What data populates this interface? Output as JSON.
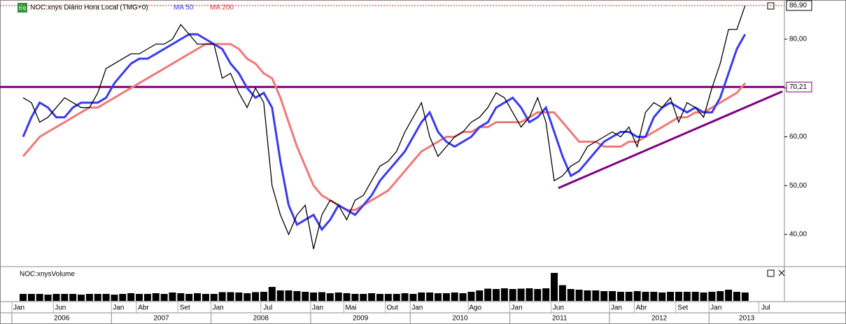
{
  "chart_data": [
    {
      "type": "line",
      "title": "NOC:xnys Diário Hora Local (TMG+0)",
      "icon": "Eq",
      "x": [
        "2006-01",
        "2006-02",
        "2006-03",
        "2006-04",
        "2006-05",
        "2006-06",
        "2006-07",
        "2006-08",
        "2006-09",
        "2006-10",
        "2006-11",
        "2006-12",
        "2007-01",
        "2007-02",
        "2007-03",
        "2007-04",
        "2007-05",
        "2007-06",
        "2007-07",
        "2007-08",
        "2007-09",
        "2007-10",
        "2007-11",
        "2007-12",
        "2008-01",
        "2008-02",
        "2008-03",
        "2008-04",
        "2008-05",
        "2008-06",
        "2008-07",
        "2008-08",
        "2008-09",
        "2008-10",
        "2008-11",
        "2008-12",
        "2009-01",
        "2009-02",
        "2009-03",
        "2009-04",
        "2009-05",
        "2009-06",
        "2009-07",
        "2009-08",
        "2009-09",
        "2009-10",
        "2009-11",
        "2009-12",
        "2010-01",
        "2010-02",
        "2010-03",
        "2010-04",
        "2010-05",
        "2010-06",
        "2010-07",
        "2010-08",
        "2010-09",
        "2010-10",
        "2010-11",
        "2010-12",
        "2011-01",
        "2011-02",
        "2011-03",
        "2011-04",
        "2011-05",
        "2011-06",
        "2011-07",
        "2011-08",
        "2011-09",
        "2011-10",
        "2011-11",
        "2011-12",
        "2012-01",
        "2012-02",
        "2012-03",
        "2012-04",
        "2012-05",
        "2012-06",
        "2012-07",
        "2012-08",
        "2012-09",
        "2012-10",
        "2012-11",
        "2012-12",
        "2013-01",
        "2013-02",
        "2013-03",
        "2013-04"
      ],
      "series": [
        {
          "name": "NOC:xnys",
          "color": "#000000",
          "values": [
            68,
            67,
            63,
            64,
            66,
            68,
            67,
            66,
            66,
            69,
            74,
            75,
            76,
            77,
            77,
            78,
            79,
            79,
            80,
            83,
            81,
            79,
            79,
            79,
            72,
            73,
            69,
            66,
            70,
            67,
            50,
            44,
            40,
            44,
            46,
            37,
            44,
            47,
            46,
            43,
            47,
            48,
            51,
            54,
            55,
            57,
            61,
            64,
            67,
            60,
            56,
            58,
            60,
            61,
            63,
            64,
            66,
            69,
            68,
            65,
            62,
            64,
            68,
            63,
            51,
            52,
            54,
            55,
            58,
            59,
            60,
            61,
            60,
            62,
            58,
            65,
            67,
            66,
            68,
            63,
            67,
            66,
            64,
            70,
            75,
            82,
            82,
            86.9
          ]
        },
        {
          "name": "MA 50",
          "color": "#3a3af0",
          "values": [
            60,
            64,
            67,
            66,
            64,
            64,
            66,
            67,
            67,
            67,
            68,
            71,
            73,
            75,
            76,
            76,
            77,
            78,
            79,
            80,
            81,
            81,
            80,
            79,
            78,
            75,
            73,
            70,
            68,
            69,
            66,
            55,
            46,
            42,
            43,
            44,
            41,
            43,
            46,
            45,
            44,
            46,
            48,
            51,
            53,
            55,
            57,
            60,
            63,
            65,
            61,
            59,
            58,
            59,
            60,
            62,
            63,
            66,
            67,
            68,
            66,
            63,
            64,
            66,
            61,
            56,
            52,
            53,
            55,
            57,
            59,
            60,
            61,
            61,
            60,
            60,
            64,
            66,
            67,
            66,
            65,
            66,
            65,
            65,
            68,
            73,
            78,
            81
          ]
        },
        {
          "name": "MA 200",
          "color": "#f07878",
          "values": [
            56,
            58,
            60,
            61,
            62,
            63,
            64,
            65,
            66,
            66,
            67,
            68,
            69,
            70,
            71,
            72,
            73,
            74,
            75,
            76,
            77,
            78,
            79,
            79,
            79,
            79,
            78,
            76,
            75,
            73,
            72,
            68,
            63,
            58,
            54,
            50,
            48,
            47,
            46,
            45,
            45,
            46,
            47,
            48,
            49,
            51,
            53,
            55,
            57,
            58,
            59,
            60,
            60,
            61,
            61,
            62,
            62,
            63,
            63,
            63,
            63,
            64,
            65,
            65,
            65,
            63,
            61,
            59,
            59,
            59,
            58,
            58,
            58,
            59,
            59,
            60,
            61,
            62,
            63,
            64,
            64,
            65,
            65,
            66,
            67,
            68,
            69,
            71
          ]
        }
      ],
      "last_label": "86,90",
      "hline": {
        "value": 70.21,
        "label": "70,21",
        "color": "#800080"
      },
      "trendline": {
        "x": [
          "2011-06",
          "2013-09"
        ],
        "y": [
          49.5,
          69.3
        ],
        "color": "#800080"
      },
      "ylim": [
        33.55,
        88.03
      ],
      "yticks": [
        {
          "value": 40,
          "label": "40,00"
        },
        {
          "value": 50,
          "label": "50,00"
        },
        {
          "value": 60,
          "label": "60,00"
        },
        {
          "value": 70,
          "label": "70,00"
        },
        {
          "value": 80,
          "label": "80,00"
        }
      ]
    },
    {
      "type": "bar",
      "title": "NOC:xnysVolume",
      "color": "#000000",
      "values": [
        2,
        2,
        2,
        1.8,
        2,
        2,
        2,
        1.8,
        2,
        2,
        2,
        1.8,
        2,
        2.2,
        2,
        2,
        2.2,
        2,
        2.4,
        2.2,
        2,
        2.2,
        2,
        2,
        2.5,
        2.5,
        2.4,
        2.2,
        2.5,
        2.6,
        4,
        3,
        3,
        2.8,
        2.6,
        2.4,
        2.5,
        2.2,
        2.4,
        2.2,
        2,
        2,
        2.2,
        2,
        2,
        2,
        2.2,
        2,
        2.4,
        2.4,
        2.2,
        2.2,
        2.4,
        2.2,
        2.6,
        3,
        3.5,
        3.4,
        3.6,
        3.4,
        3.5,
        3.6,
        3.4,
        3.6,
        8,
        4.5,
        3.4,
        3.2,
        3,
        3,
        2.8,
        2.8,
        2.6,
        2.6,
        2.8,
        2.6,
        2.6,
        2.4,
        2.6,
        2.6,
        2.6,
        2.6,
        2.4,
        2.6,
        2.8,
        3.2,
        2.6,
        2.4
      ],
      "xticks": [
        {
          "value": "2006-01",
          "label": "Jan"
        },
        {
          "value": "2006-06",
          "label": "Jun"
        },
        {
          "value": "2007-01",
          "label": "Jan"
        },
        {
          "value": "2007-04",
          "label": "Abr"
        },
        {
          "value": "2007-09",
          "label": "Set"
        },
        {
          "value": "2008-01",
          "label": "Jan"
        },
        {
          "value": "2008-07",
          "label": "Jul"
        },
        {
          "value": "2009-01",
          "label": "Jan"
        },
        {
          "value": "2009-05",
          "label": "Mai"
        },
        {
          "value": "2009-10",
          "label": "Out"
        },
        {
          "value": "2010-01",
          "label": "Jan"
        },
        {
          "value": "2010-08",
          "label": "Ago"
        },
        {
          "value": "2011-01",
          "label": "Jan"
        },
        {
          "value": "2011-06",
          "label": "Jun"
        },
        {
          "value": "2012-01",
          "label": "Jan"
        },
        {
          "value": "2012-04",
          "label": "Abr"
        },
        {
          "value": "2012-09",
          "label": "Set"
        },
        {
          "value": "2013-01",
          "label": "Jan"
        },
        {
          "value": "2013-07",
          "label": "Jul"
        }
      ],
      "years": [
        2006,
        2007,
        2008,
        2009,
        2010,
        2011,
        2012,
        2013
      ]
    }
  ]
}
